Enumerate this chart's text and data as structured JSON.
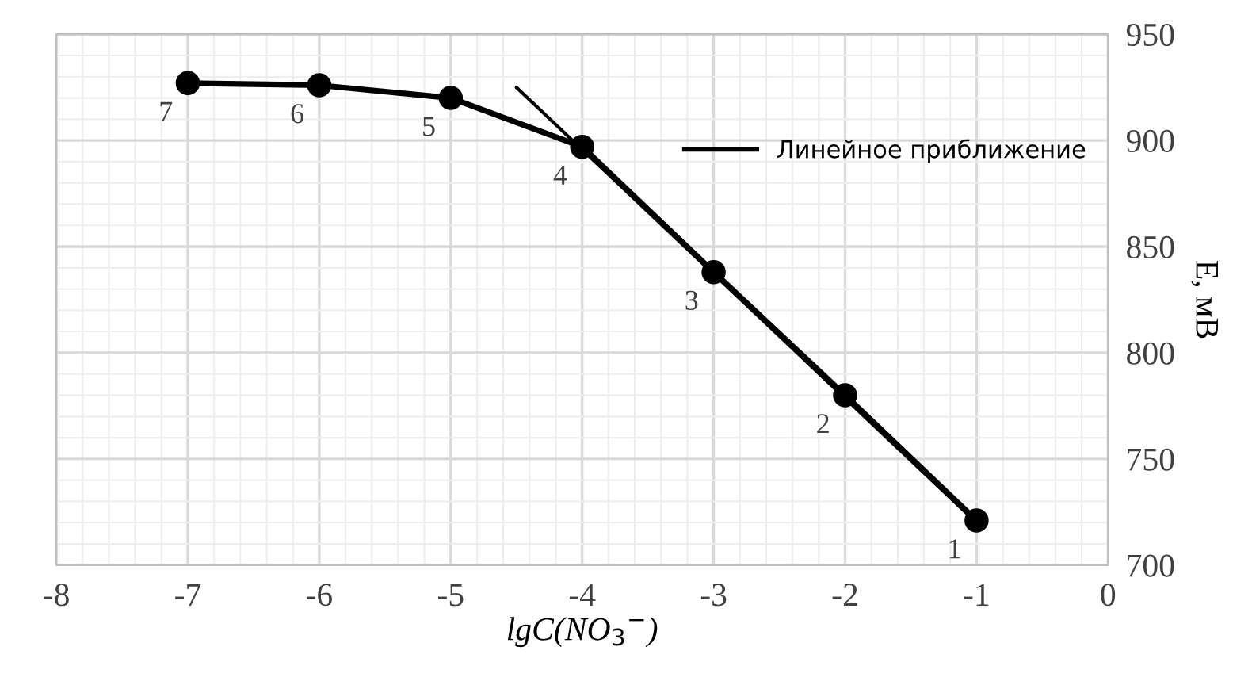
{
  "chart_data": {
    "type": "line",
    "xlabel": "lgC(NO$_{3}$$^{−}$)",
    "ylabel": "E, мВ",
    "xlim": [
      -8,
      0
    ],
    "xticks": [
      -8,
      -7,
      -6,
      -5,
      -4,
      -3,
      -2,
      -1,
      0
    ],
    "ylim": [
      700,
      950
    ],
    "yticks": [
      700,
      750,
      800,
      850,
      900,
      950
    ],
    "grid": true,
    "legend": "right",
    "line_style": "solid",
    "series": [
      {
        "color": "#000000",
        "marker": "circle",
        "x": [
          -7,
          -6,
          -5,
          -4,
          -3,
          -2,
          -1
        ],
        "values": [
          927,
          926,
          920,
          897,
          838,
          780,
          721
        ]
      },
      {
        "name": "Линейное приближение",
        "color": "#000000",
        "marker": "none",
        "x": [
          -4.5,
          -1
        ],
        "values": [
          925,
          720
        ]
      }
    ],
    "annotations": [
      {
        "text": "7",
        "x": -7,
        "y": 927
      },
      {
        "text": "6",
        "x": -6,
        "y": 926
      },
      {
        "text": "5",
        "x": -5,
        "y": 920
      },
      {
        "text": "4",
        "x": -4,
        "y": 897
      },
      {
        "text": "3",
        "x": -3,
        "y": 838
      },
      {
        "text": "2",
        "x": -2,
        "y": 780
      },
      {
        "text": "1",
        "x": -1,
        "y": 721
      }
    ]
  }
}
